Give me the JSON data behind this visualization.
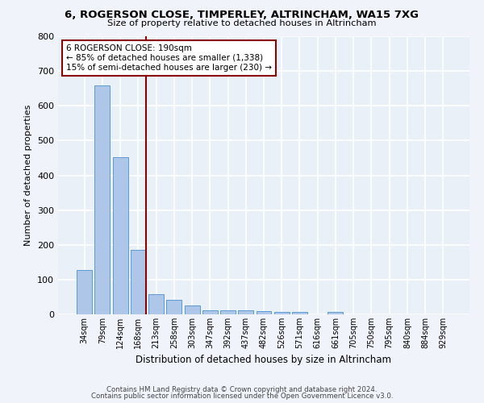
{
  "title": "6, ROGERSON CLOSE, TIMPERLEY, ALTRINCHAM, WA15 7XG",
  "subtitle": "Size of property relative to detached houses in Altrincham",
  "xlabel": "Distribution of detached houses by size in Altrincham",
  "ylabel": "Number of detached properties",
  "bar_labels": [
    "34sqm",
    "79sqm",
    "124sqm",
    "168sqm",
    "213sqm",
    "258sqm",
    "303sqm",
    "347sqm",
    "392sqm",
    "437sqm",
    "482sqm",
    "526sqm",
    "571sqm",
    "616sqm",
    "661sqm",
    "705sqm",
    "750sqm",
    "795sqm",
    "840sqm",
    "884sqm",
    "929sqm"
  ],
  "bar_values": [
    128,
    658,
    452,
    185,
    58,
    42,
    25,
    12,
    12,
    12,
    10,
    7,
    8,
    0,
    8,
    0,
    0,
    0,
    0,
    0,
    0
  ],
  "bar_color": "#aec6e8",
  "bar_edge_color": "#5b9bd5",
  "bg_color": "#eaf0f8",
  "grid_color": "#ffffff",
  "vline_x": 3.42,
  "vline_color": "#8b0000",
  "annotation_title": "6 ROGERSON CLOSE: 190sqm",
  "annotation_line1": "← 85% of detached houses are smaller (1,338)",
  "annotation_line2": "15% of semi-detached houses are larger (230) →",
  "annotation_box_color": "#ffffff",
  "annotation_border_color": "#8b0000",
  "footer_line1": "Contains HM Land Registry data © Crown copyright and database right 2024.",
  "footer_line2": "Contains public sector information licensed under the Open Government Licence v3.0.",
  "ylim": [
    0,
    800
  ],
  "yticks": [
    0,
    100,
    200,
    300,
    400,
    500,
    600,
    700,
    800
  ],
  "fig_bg": "#f0f4fa"
}
